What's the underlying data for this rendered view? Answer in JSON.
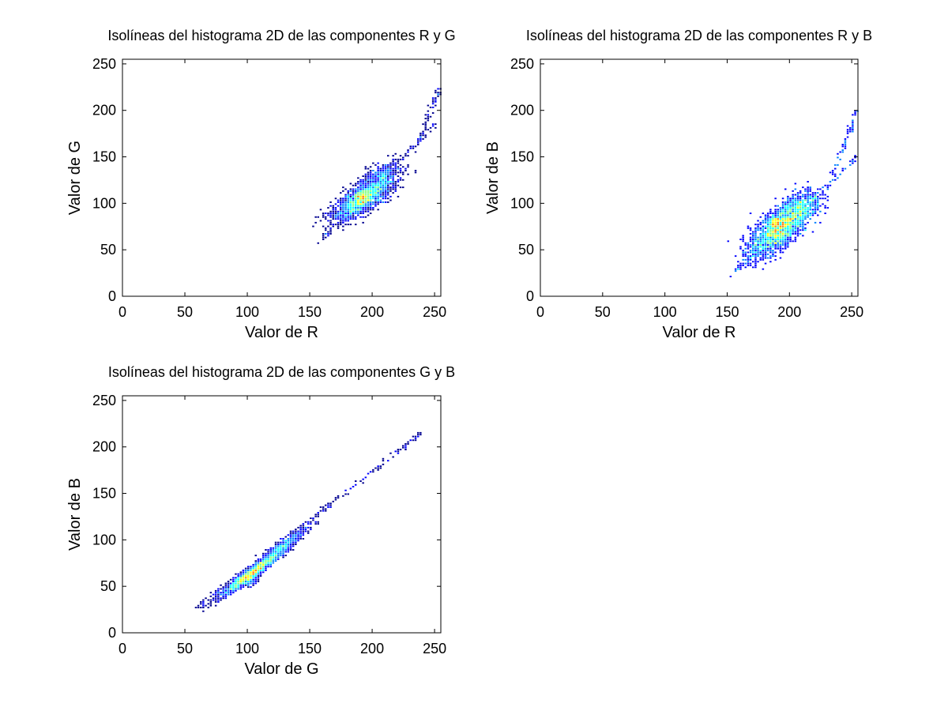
{
  "figure": {
    "background": "#ffffff",
    "colormap": "jet",
    "colors": [
      "#00008f",
      "#0000ff",
      "#0080ff",
      "#00ffff",
      "#80ff80",
      "#ffff00",
      "#ff8000"
    ]
  },
  "chart_data": [
    {
      "type": "heatmap",
      "title": "Isolíneas del histograma 2D de las componentes R y G",
      "xlabel": "Valor de R",
      "ylabel": "Valor de G",
      "xlim": [
        0,
        255
      ],
      "ylim": [
        0,
        255
      ],
      "xticks": [
        0,
        50,
        100,
        150,
        200,
        250
      ],
      "yticks": [
        0,
        50,
        100,
        150,
        200,
        250
      ],
      "grid": false,
      "clusters": [
        {
          "cx": 192,
          "cy": 103,
          "sx": 12,
          "sy": 11,
          "rho": 0.75,
          "n": 1600
        },
        {
          "cx": 205,
          "cy": 125,
          "sx": 9,
          "sy": 10,
          "rho": 0.6,
          "n": 500
        }
      ],
      "trails": [
        {
          "x0": 158,
          "y0": 58,
          "x1": 250,
          "y1": 185,
          "n": 140
        },
        {
          "x0": 238,
          "y0": 165,
          "x1": 255,
          "y1": 228,
          "n": 60
        }
      ],
      "peak": {
        "x": 192,
        "y": 108
      }
    },
    {
      "type": "heatmap",
      "title": "Isolíneas del histograma 2D de las componentes R y B",
      "xlabel": "Valor de R",
      "ylabel": "Valor de B",
      "xlim": [
        0,
        255
      ],
      "ylim": [
        0,
        255
      ],
      "xticks": [
        0,
        50,
        100,
        150,
        200,
        250
      ],
      "yticks": [
        0,
        50,
        100,
        150,
        200,
        250
      ],
      "grid": false,
      "clusters": [
        {
          "cx": 192,
          "cy": 72,
          "sx": 12,
          "sy": 15,
          "rho": 0.7,
          "n": 1700
        },
        {
          "cx": 208,
          "cy": 95,
          "sx": 9,
          "sy": 10,
          "rho": 0.5,
          "n": 400
        }
      ],
      "trails": [
        {
          "x0": 157,
          "y0": 27,
          "x1": 255,
          "y1": 150,
          "n": 160
        },
        {
          "x0": 235,
          "y0": 130,
          "x1": 255,
          "y1": 200,
          "n": 60
        }
      ],
      "peak": {
        "x": 190,
        "y": 78
      }
    },
    {
      "type": "heatmap",
      "title": "Isolíneas del histograma 2D de las componentes G y B",
      "xlabel": "Valor de G",
      "ylabel": "Valor de B",
      "xlim": [
        0,
        255
      ],
      "ylim": [
        0,
        255
      ],
      "xticks": [
        0,
        50,
        100,
        150,
        200,
        250
      ],
      "yticks": [
        0,
        50,
        100,
        150,
        200,
        250
      ],
      "grid": false,
      "clusters": [
        {
          "cx": 105,
          "cy": 65,
          "sx": 13,
          "sy": 13,
          "rho": 0.97,
          "n": 2000
        },
        {
          "cx": 130,
          "cy": 95,
          "sx": 10,
          "sy": 10,
          "rho": 0.95,
          "n": 500
        }
      ],
      "trails": [
        {
          "x0": 58,
          "y0": 25,
          "x1": 240,
          "y1": 215,
          "n": 200
        }
      ],
      "peak": {
        "x": 100,
        "y": 58
      }
    }
  ]
}
